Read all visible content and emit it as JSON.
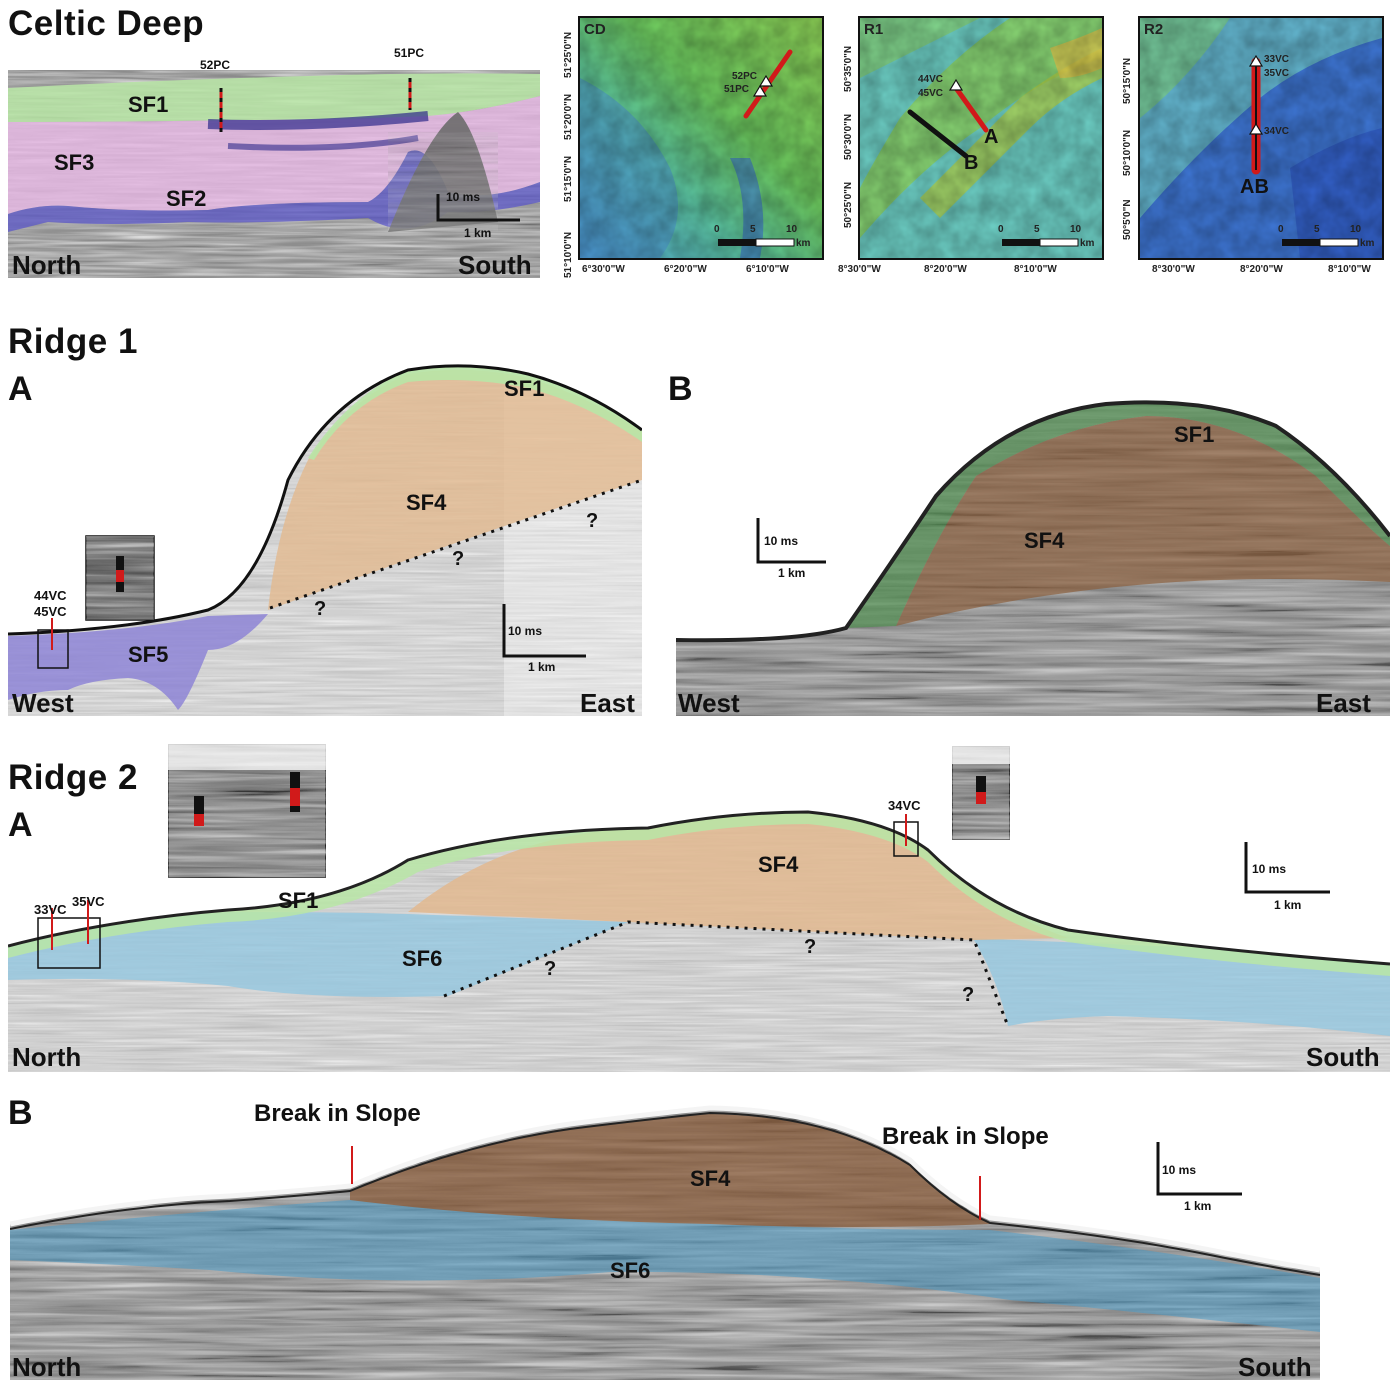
{
  "celtic_deep": {
    "title": "Celtic Deep",
    "units": [
      "SF1",
      "SF2",
      "SF3"
    ],
    "cores": [
      "52PC",
      "51PC"
    ],
    "scale": {
      "vertical": "10 ms",
      "horizontal": "1 km"
    },
    "direction": {
      "left": "North",
      "right": "South"
    }
  },
  "maps": [
    {
      "id": "CD",
      "cores": [
        "52PC",
        "51PC"
      ],
      "lat_ticks": [
        "51°25'0\"N",
        "51°20'0\"N",
        "51°15'0\"N",
        "51°10'0\"N"
      ],
      "lon_ticks": [
        "6°30'0\"W",
        "6°20'0\"W",
        "6°10'0\"W"
      ],
      "scale": [
        "0",
        "5",
        "10",
        "km"
      ]
    },
    {
      "id": "R1",
      "cores": [
        "44VC",
        "45VC"
      ],
      "lines": [
        "A",
        "B"
      ],
      "lat_ticks": [
        "50°35'0\"N",
        "50°30'0\"N",
        "50°25'0\"N"
      ],
      "lon_ticks": [
        "8°30'0\"W",
        "8°20'0\"W",
        "8°10'0\"W"
      ],
      "scale": [
        "0",
        "5",
        "10",
        "km"
      ]
    },
    {
      "id": "R2",
      "cores": [
        "33VC",
        "35VC",
        "34VC"
      ],
      "lines": [
        "AB"
      ],
      "lat_ticks": [
        "50°15'0\"N",
        "50°10'0\"N",
        "50°5'0\"N"
      ],
      "lon_ticks": [
        "8°30'0\"W",
        "8°20'0\"W",
        "8°10'0\"W"
      ],
      "scale": [
        "0",
        "5",
        "10",
        "km"
      ]
    }
  ],
  "ridge1": {
    "title": "Ridge 1",
    "panel_a": {
      "label": "A",
      "units": [
        "SF1",
        "SF4",
        "SF5"
      ],
      "cores": [
        "44VC",
        "45VC"
      ],
      "question": "?",
      "scale": {
        "vertical": "10 ms",
        "horizontal": "1 km"
      },
      "direction": {
        "left": "West",
        "right": "East"
      }
    },
    "panel_b": {
      "label": "B",
      "units": [
        "SF1",
        "SF4"
      ],
      "scale": {
        "vertical": "10 ms",
        "horizontal": "1 km"
      },
      "direction": {
        "left": "West",
        "right": "East"
      }
    }
  },
  "ridge2": {
    "title": "Ridge 2",
    "panel_a": {
      "label": "A",
      "units": [
        "SF1",
        "SF4",
        "SF6"
      ],
      "cores": [
        "33VC",
        "35VC",
        "34VC"
      ],
      "question": "?",
      "scale": {
        "vertical": "10 ms",
        "horizontal": "1 km"
      },
      "direction": {
        "left": "North",
        "right": "South"
      }
    },
    "panel_b": {
      "label": "B",
      "units": [
        "SF4",
        "SF6"
      ],
      "annotation": "Break in Slope",
      "scale": {
        "vertical": "10 ms",
        "horizontal": "1 km"
      },
      "direction": {
        "left": "North",
        "right": "South"
      }
    }
  },
  "colors": {
    "sf1": "#b8e6a6",
    "sf2": "#5b57c8",
    "sf3": "#e8b9e6",
    "sf4": "#d8ad86",
    "sf5": "#8a7fd6",
    "sf6": "#93c7e0",
    "core_red": "#d11a1a"
  }
}
